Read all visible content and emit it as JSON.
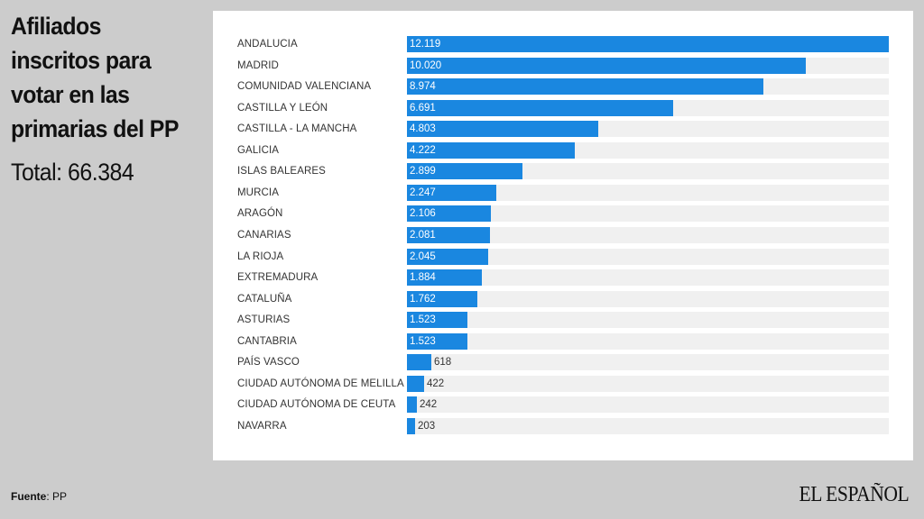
{
  "header": {
    "title": "Afiliados inscritos para votar en las primarias del PP",
    "total": "Total: 66.384"
  },
  "footer": {
    "source_label": "Fuente",
    "source_value": ": PP",
    "logo": "EL ESPAÑOL"
  },
  "colors": {
    "bar": "#1a87e0",
    "track": "#f0f0f0",
    "background": "#cccccc",
    "panel": "#ffffff"
  },
  "chart_data": {
    "type": "bar",
    "orientation": "horizontal",
    "title": "Afiliados inscritos para votar en las primarias del PP",
    "subtitle": "Total: 66.384",
    "source": "Fuente: PP",
    "categories": [
      "ANDALUCIA",
      "MADRID",
      "COMUNIDAD VALENCIANA",
      "CASTILLA Y LEÓN",
      "CASTILLA - LA MANCHA",
      "GALICIA",
      "ISLAS BALEARES",
      "MURCIA",
      "ARAGÓN",
      "CANARIAS",
      "LA RIOJA",
      "EXTREMADURA",
      "CATALUÑA",
      "ASTURIAS",
      "CANTABRIA",
      "PAÍS VASCO",
      "CIUDAD AUTÓNOMA DE MELILLA",
      "CIUDAD AUTÓNOMA DE CEUTA",
      "NAVARRA"
    ],
    "values": [
      12119,
      10020,
      8974,
      6691,
      4803,
      4222,
      2899,
      2247,
      2106,
      2081,
      2045,
      1884,
      1762,
      1523,
      1523,
      618,
      422,
      242,
      203
    ],
    "value_labels": [
      "12.119",
      "10.020",
      "8.974",
      "6.691",
      "4.803",
      "4.222",
      "2.899",
      "2.247",
      "2.106",
      "2.081",
      "2.045",
      "1.884",
      "1.762",
      "1.523",
      "1.523",
      "618",
      "422",
      "242",
      "203"
    ],
    "xlabel": "",
    "ylabel": "",
    "xlim": [
      0,
      12119
    ],
    "grid": false,
    "legend": null
  }
}
